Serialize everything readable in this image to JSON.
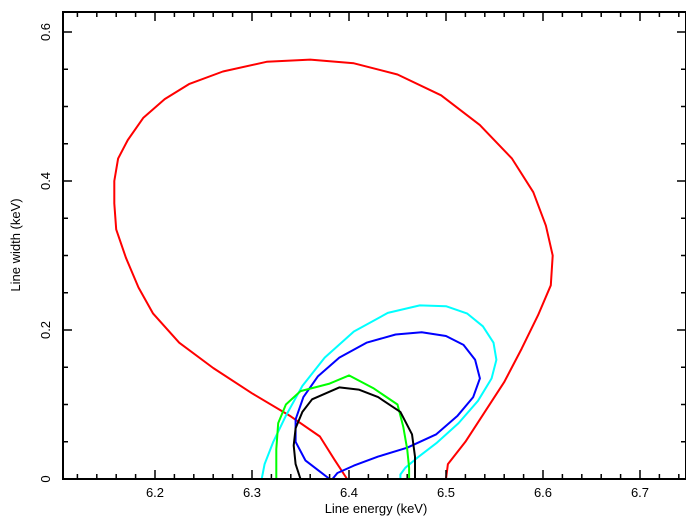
{
  "chart_data": {
    "type": "line",
    "xlabel": "Line energy (keV)",
    "ylabel": "Line width (keV)",
    "xlim": [
      6.1,
      6.75
    ],
    "ylim": [
      0,
      0.62
    ],
    "x_ticks": [
      6.2,
      6.3,
      6.4,
      6.5,
      6.6,
      6.7
    ],
    "x_tick_labels": [
      "6.2",
      "6.3",
      "6.4",
      "6.5",
      "6.6",
      "6.7"
    ],
    "y_ticks": [
      0,
      0.2,
      0.4,
      0.6
    ],
    "y_tick_labels": [
      "0",
      "0.2",
      "0.4",
      "0.6"
    ],
    "grid": false,
    "series": [
      {
        "color": "#ff0000",
        "points": [
          [
            6.398,
            0
          ],
          [
            6.385,
            0.026
          ],
          [
            6.37,
            0.057
          ],
          [
            6.34,
            0.084
          ],
          [
            6.3,
            0.115
          ],
          [
            6.26,
            0.149
          ],
          [
            6.225,
            0.183
          ],
          [
            6.198,
            0.222
          ],
          [
            6.183,
            0.257
          ],
          [
            6.17,
            0.297
          ],
          [
            6.16,
            0.335
          ],
          [
            6.158,
            0.37
          ],
          [
            6.158,
            0.4
          ],
          [
            6.162,
            0.43
          ],
          [
            6.172,
            0.455
          ],
          [
            6.188,
            0.485
          ],
          [
            6.21,
            0.51
          ],
          [
            6.235,
            0.53
          ],
          [
            6.27,
            0.547
          ],
          [
            6.315,
            0.56
          ],
          [
            6.36,
            0.563
          ],
          [
            6.405,
            0.558
          ],
          [
            6.45,
            0.543
          ],
          [
            6.495,
            0.515
          ],
          [
            6.535,
            0.475
          ],
          [
            6.568,
            0.43
          ],
          [
            6.59,
            0.385
          ],
          [
            6.603,
            0.34
          ],
          [
            6.61,
            0.3
          ],
          [
            6.608,
            0.26
          ],
          [
            6.595,
            0.22
          ],
          [
            6.578,
            0.175
          ],
          [
            6.56,
            0.13
          ],
          [
            6.54,
            0.09
          ],
          [
            6.52,
            0.05
          ],
          [
            6.502,
            0.02
          ],
          [
            6.5,
            0
          ]
        ]
      },
      {
        "color": "#00ffff",
        "points": [
          [
            6.31,
            0
          ],
          [
            6.313,
            0.02
          ],
          [
            6.322,
            0.05
          ],
          [
            6.335,
            0.085
          ],
          [
            6.352,
            0.125
          ],
          [
            6.375,
            0.163
          ],
          [
            6.405,
            0.198
          ],
          [
            6.44,
            0.223
          ],
          [
            6.473,
            0.233
          ],
          [
            6.5,
            0.232
          ],
          [
            6.522,
            0.222
          ],
          [
            6.538,
            0.205
          ],
          [
            6.549,
            0.183
          ],
          [
            6.552,
            0.16
          ],
          [
            6.547,
            0.135
          ],
          [
            6.533,
            0.105
          ],
          [
            6.513,
            0.075
          ],
          [
            6.49,
            0.048
          ],
          [
            6.47,
            0.028
          ],
          [
            6.458,
            0.015
          ],
          [
            6.453,
            0.006
          ],
          [
            6.453,
            0
          ]
        ]
      },
      {
        "color": "#0000ff",
        "points": [
          [
            6.38,
            0
          ],
          [
            6.37,
            0.01
          ],
          [
            6.355,
            0.025
          ],
          [
            6.345,
            0.05
          ],
          [
            6.345,
            0.08
          ],
          [
            6.353,
            0.11
          ],
          [
            6.368,
            0.138
          ],
          [
            6.39,
            0.163
          ],
          [
            6.418,
            0.183
          ],
          [
            6.448,
            0.194
          ],
          [
            6.475,
            0.197
          ],
          [
            6.5,
            0.192
          ],
          [
            6.518,
            0.18
          ],
          [
            6.53,
            0.16
          ],
          [
            6.535,
            0.135
          ],
          [
            6.528,
            0.11
          ],
          [
            6.512,
            0.085
          ],
          [
            6.49,
            0.06
          ],
          [
            6.46,
            0.042
          ],
          [
            6.43,
            0.03
          ],
          [
            6.405,
            0.018
          ],
          [
            6.388,
            0.008
          ],
          [
            6.383,
            0
          ]
        ]
      },
      {
        "color": "#00ff00",
        "points": [
          [
            6.325,
            0
          ],
          [
            6.325,
            0.04
          ],
          [
            6.327,
            0.075
          ],
          [
            6.335,
            0.1
          ],
          [
            6.35,
            0.118
          ],
          [
            6.38,
            0.128
          ],
          [
            6.4,
            0.139
          ],
          [
            6.425,
            0.122
          ],
          [
            6.45,
            0.1
          ],
          [
            6.456,
            0.07
          ],
          [
            6.46,
            0.04
          ],
          [
            6.462,
            0.015
          ],
          [
            6.462,
            0
          ]
        ]
      },
      {
        "color": "#000000",
        "points": [
          [
            6.35,
            0
          ],
          [
            6.345,
            0.02
          ],
          [
            6.343,
            0.045
          ],
          [
            6.345,
            0.068
          ],
          [
            6.352,
            0.09
          ],
          [
            6.362,
            0.107
          ],
          [
            6.39,
            0.123
          ],
          [
            6.41,
            0.12
          ],
          [
            6.43,
            0.11
          ],
          [
            6.453,
            0.09
          ],
          [
            6.465,
            0.06
          ],
          [
            6.468,
            0.03
          ],
          [
            6.468,
            0
          ]
        ]
      }
    ]
  }
}
